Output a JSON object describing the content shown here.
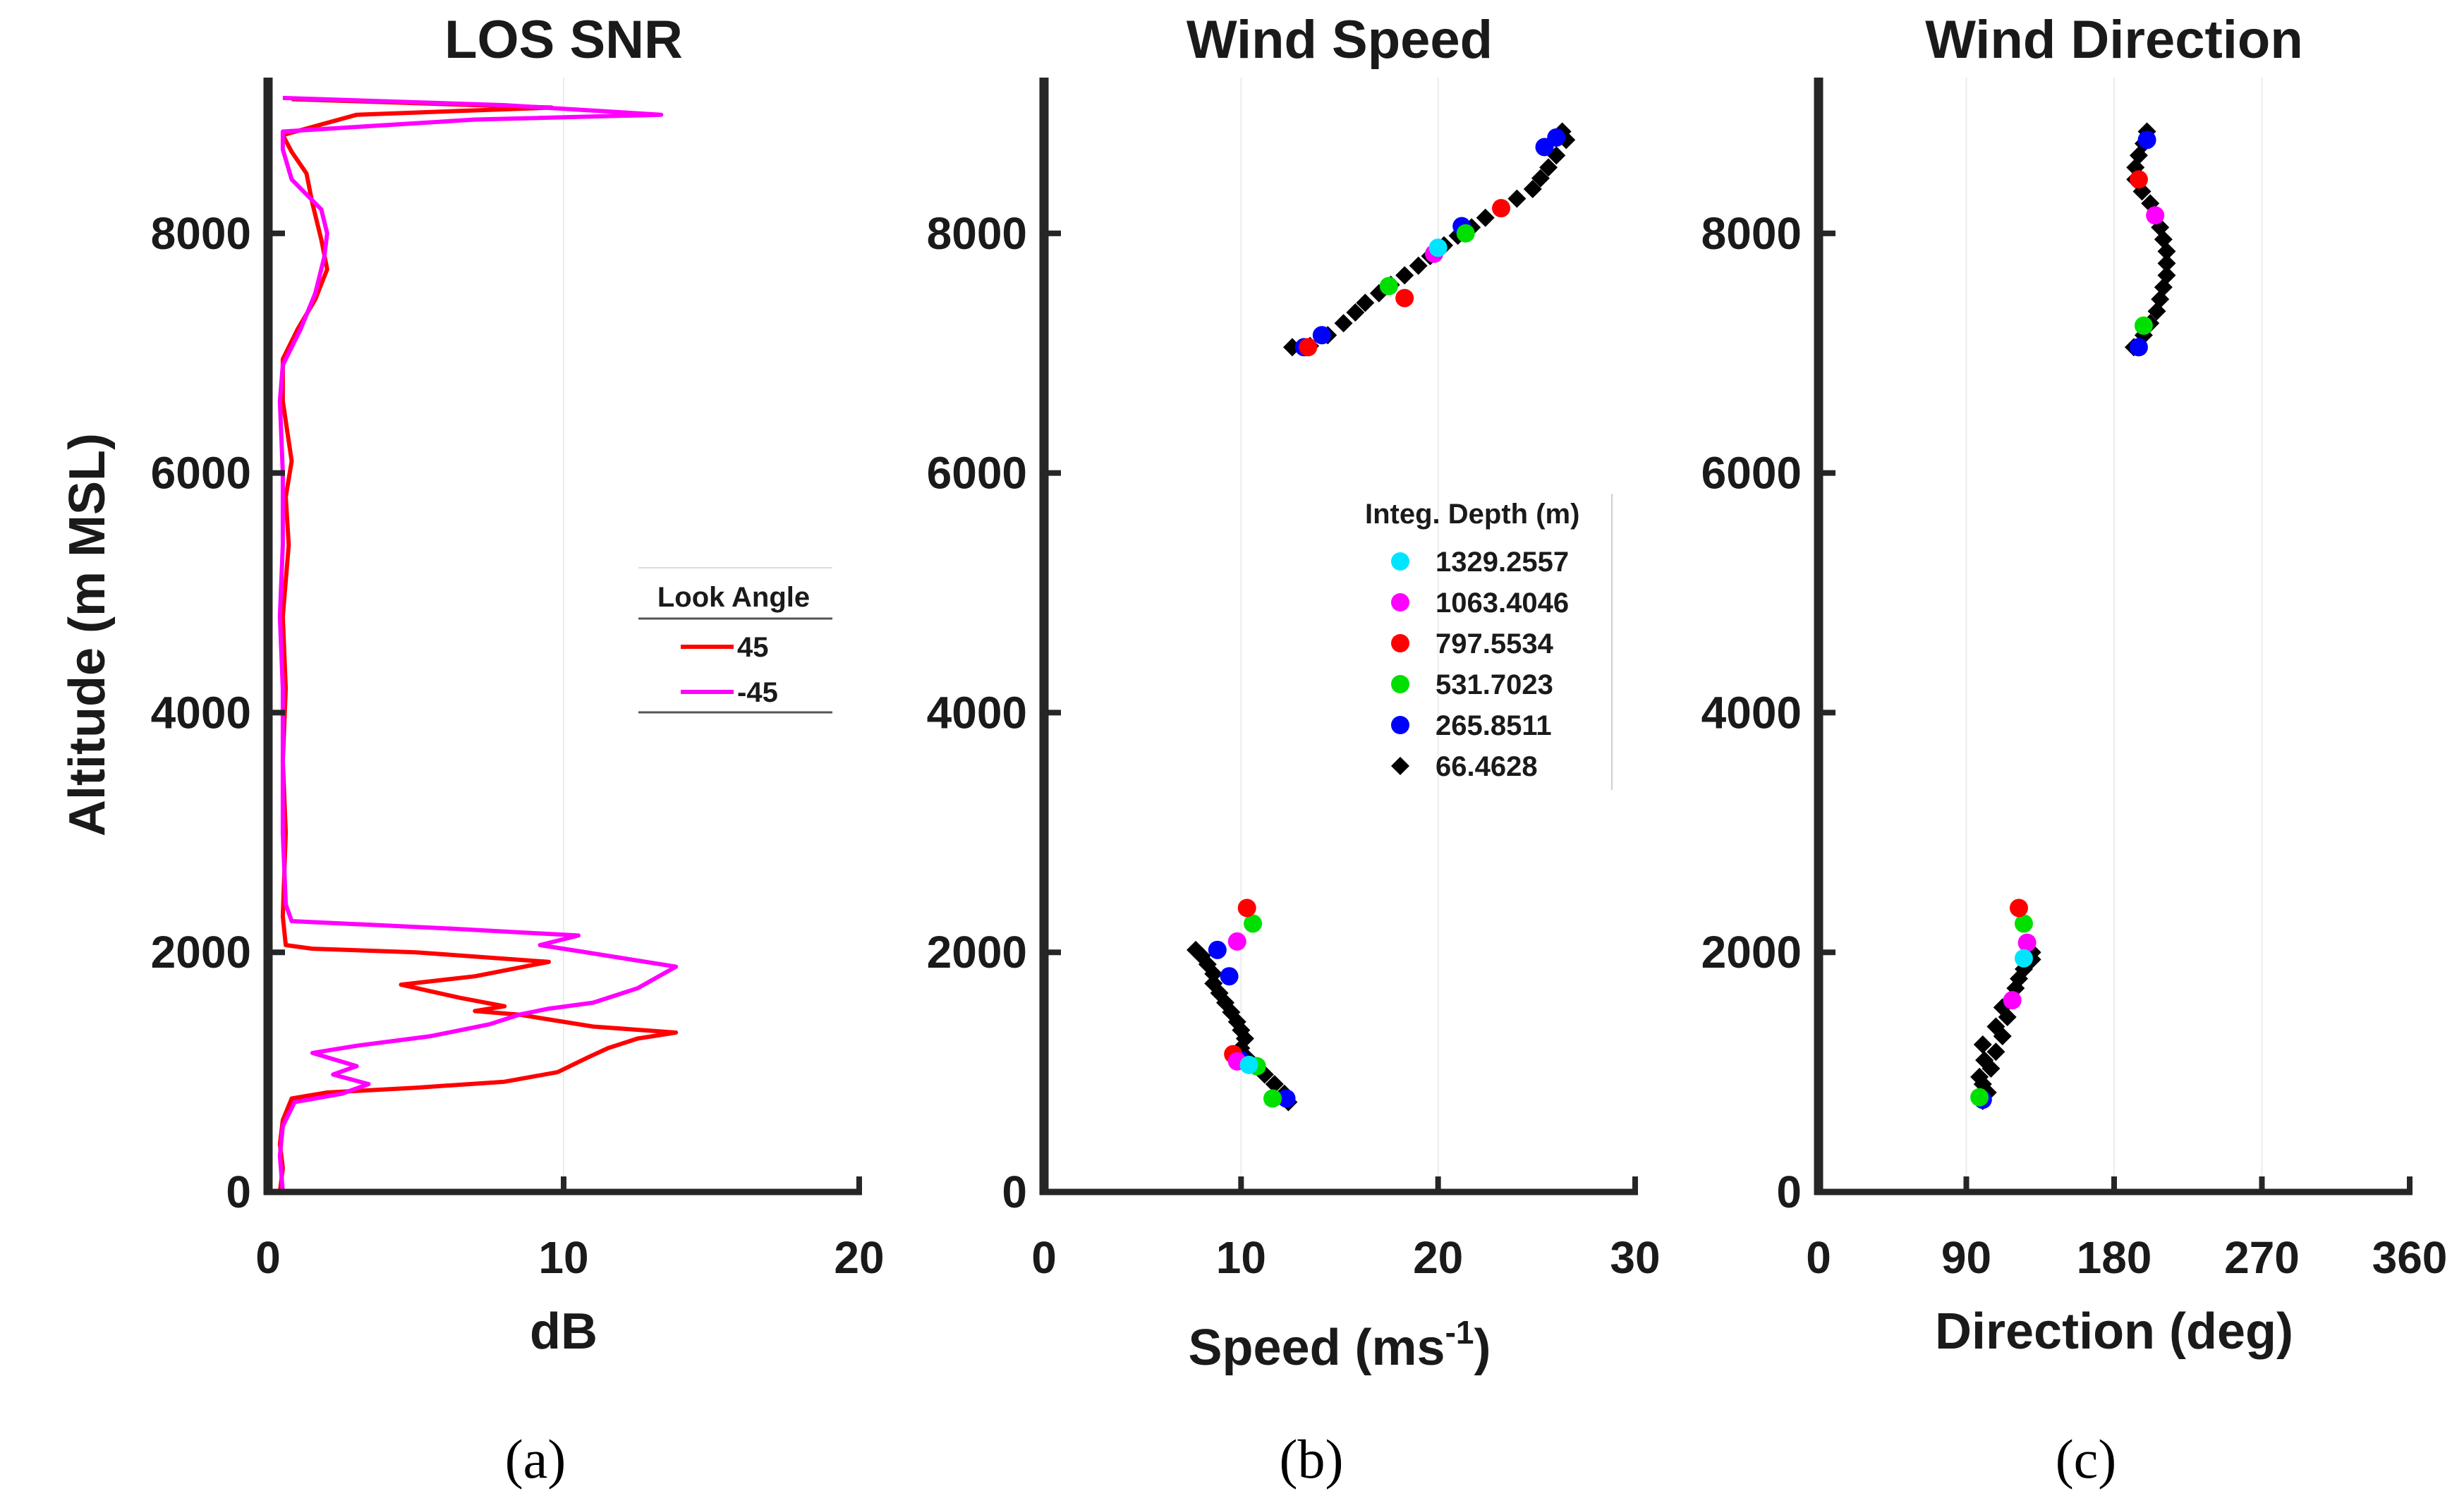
{
  "chart_data": [
    {
      "type": "line",
      "panel": "(a)",
      "title": "LOS SNR",
      "xlabel": "dB",
      "ylabel": "Altitude (m MSL)",
      "xlim": [
        0,
        20
      ],
      "ylim": [
        0,
        9300
      ],
      "xticks": [
        "0",
        "10",
        "20"
      ],
      "yticks": [
        "0",
        "2000",
        "4000",
        "6000",
        "8000"
      ],
      "legend": {
        "title": "Look Angle",
        "entries": [
          "45",
          "-45"
        ],
        "position": "center-right"
      },
      "series": [
        {
          "name": "45",
          "color": "#ff0000",
          "points": [
            [
              0.4,
              0
            ],
            [
              0.5,
              200
            ],
            [
              0.4,
              400
            ],
            [
              0.5,
              600
            ],
            [
              0.8,
              780
            ],
            [
              2,
              830
            ],
            [
              5,
              870
            ],
            [
              8,
              920
            ],
            [
              9.8,
              1000
            ],
            [
              10.8,
              1120
            ],
            [
              11.5,
              1200
            ],
            [
              12.5,
              1280
            ],
            [
              13.8,
              1330
            ],
            [
              11,
              1380
            ],
            [
              8.5,
              1480
            ],
            [
              7,
              1510
            ],
            [
              8,
              1550
            ],
            [
              6.5,
              1620
            ],
            [
              4.5,
              1730
            ],
            [
              7,
              1800
            ],
            [
              9.5,
              1920
            ],
            [
              5,
              2000
            ],
            [
              1.5,
              2030
            ],
            [
              0.6,
              2060
            ],
            [
              0.5,
              2300
            ],
            [
              0.6,
              3000
            ],
            [
              0.5,
              3600
            ],
            [
              0.6,
              4200
            ],
            [
              0.5,
              4800
            ],
            [
              0.7,
              5400
            ],
            [
              0.6,
              5800
            ],
            [
              0.8,
              6100
            ],
            [
              0.5,
              6600
            ],
            [
              0.5,
              6950
            ],
            [
              1,
              7200
            ],
            [
              1.6,
              7450
            ],
            [
              2,
              7700
            ],
            [
              1.8,
              7950
            ],
            [
              1.5,
              8250
            ],
            [
              1.3,
              8500
            ],
            [
              0.8,
              8680
            ],
            [
              0.5,
              8820
            ],
            [
              3,
              8990
            ],
            [
              9.6,
              9050
            ],
            [
              0.8,
              9120
            ]
          ]
        },
        {
          "name": "-45",
          "color": "#ff00ff",
          "points": [
            [
              0.5,
              0
            ],
            [
              0.4,
              300
            ],
            [
              0.5,
              550
            ],
            [
              0.9,
              750
            ],
            [
              2.5,
              820
            ],
            [
              3.4,
              900
            ],
            [
              2.2,
              980
            ],
            [
              3,
              1050
            ],
            [
              1.5,
              1160
            ],
            [
              3,
              1220
            ],
            [
              5.5,
              1300
            ],
            [
              7.5,
              1400
            ],
            [
              8.5,
              1480
            ],
            [
              9.5,
              1530
            ],
            [
              11,
              1580
            ],
            [
              12.5,
              1700
            ],
            [
              13.8,
              1880
            ],
            [
              10.5,
              2010
            ],
            [
              9.2,
              2060
            ],
            [
              10.5,
              2140
            ],
            [
              6,
              2200
            ],
            [
              0.8,
              2260
            ],
            [
              0.6,
              2400
            ],
            [
              0.5,
              3000
            ],
            [
              0.5,
              3600
            ],
            [
              0.5,
              4200
            ],
            [
              0.4,
              4800
            ],
            [
              0.5,
              5400
            ],
            [
              0.5,
              6000
            ],
            [
              0.4,
              6600
            ],
            [
              0.5,
              6900
            ],
            [
              1.1,
              7200
            ],
            [
              1.6,
              7500
            ],
            [
              1.9,
              7800
            ],
            [
              2,
              8000
            ],
            [
              1.8,
              8200
            ],
            [
              0.8,
              8450
            ],
            [
              0.5,
              8700
            ],
            [
              0.5,
              8850
            ],
            [
              7,
              8950
            ],
            [
              13.3,
              8990
            ],
            [
              8,
              9070
            ],
            [
              0.5,
              9130
            ]
          ]
        }
      ]
    },
    {
      "type": "scatter",
      "panel": "(b)",
      "title": "Wind Speed",
      "xlabel": "Speed (ms",
      "xlabel_sup": "-1",
      "xlabel_end": ")",
      "ylabel": "",
      "xlim": [
        0,
        30
      ],
      "ylim": [
        0,
        9300
      ],
      "xticks": [
        "0",
        "10",
        "20",
        "30"
      ],
      "yticks": [
        "0",
        "2000",
        "4000",
        "6000",
        "8000"
      ],
      "legend": {
        "title": "Integ. Depth (m)",
        "entries": [
          {
            "label": "1329.2557",
            "color": "#00e5ff"
          },
          {
            "label": "1063.4046",
            "color": "#ff00ff"
          },
          {
            "label": "797.5534",
            "color": "#ff0000"
          },
          {
            "label": "531.7023",
            "color": "#00e000"
          },
          {
            "label": "265.8511",
            "color": "#0000ff"
          },
          {
            "label": "66.4628",
            "color": "#000000"
          }
        ],
        "position": "center-right"
      },
      "series": [
        {
          "name": "66.4628",
          "color": "#000000",
          "points": [
            [
              12.4,
              750
            ],
            [
              12.2,
              820
            ],
            [
              11.7,
              900
            ],
            [
              11.2,
              980
            ],
            [
              10.8,
              1050
            ],
            [
              10.3,
              1120
            ],
            [
              10.0,
              1200
            ],
            [
              10.2,
              1280
            ],
            [
              10.0,
              1350
            ],
            [
              9.8,
              1420
            ],
            [
              9.5,
              1500
            ],
            [
              9.2,
              1580
            ],
            [
              8.9,
              1660
            ],
            [
              8.6,
              1740
            ],
            [
              8.6,
              1820
            ],
            [
              8.3,
              1900
            ],
            [
              8.0,
              1970
            ],
            [
              7.7,
              2020
            ],
            [
              12.6,
              7050
            ],
            [
              13.5,
              7060
            ],
            [
              14.4,
              7150
            ],
            [
              15.2,
              7250
            ],
            [
              15.8,
              7340
            ],
            [
              16.3,
              7420
            ],
            [
              17.0,
              7500
            ],
            [
              17.6,
              7570
            ],
            [
              18.3,
              7650
            ],
            [
              19.0,
              7730
            ],
            [
              19.6,
              7810
            ],
            [
              20.3,
              7900
            ],
            [
              21.0,
              7980
            ],
            [
              21.7,
              8050
            ],
            [
              22.4,
              8130
            ],
            [
              23.2,
              8210
            ],
            [
              24.0,
              8290
            ],
            [
              24.8,
              8370
            ],
            [
              25.2,
              8460
            ],
            [
              25.6,
              8550
            ],
            [
              26.0,
              8650
            ],
            [
              26.5,
              8780
            ],
            [
              26.3,
              8850
            ]
          ]
        },
        {
          "name": "265.8511",
          "color": "#0000ff",
          "points": [
            [
              12.3,
              780
            ],
            [
              10.0,
              1100
            ],
            [
              9.4,
              1800
            ],
            [
              8.8,
              2020
            ],
            [
              13.2,
              7050
            ],
            [
              14.1,
              7150
            ],
            [
              21.2,
              8060
            ],
            [
              25.4,
              8720
            ],
            [
              26.0,
              8800
            ]
          ]
        },
        {
          "name": "531.7023",
          "color": "#00e000",
          "points": [
            [
              11.6,
              780
            ],
            [
              10.8,
              1050
            ],
            [
              10.6,
              2240
            ],
            [
              17.5,
              7560
            ],
            [
              21.4,
              8000
            ]
          ]
        },
        {
          "name": "797.5534",
          "color": "#ff0000",
          "points": [
            [
              9.6,
              1150
            ],
            [
              10.3,
              2370
            ],
            [
              13.4,
              7050
            ],
            [
              18.3,
              7460
            ],
            [
              23.2,
              8210
            ]
          ]
        },
        {
          "name": "1063.4046",
          "color": "#ff00ff",
          "points": [
            [
              9.8,
              1090
            ],
            [
              9.8,
              2090
            ],
            [
              19.8,
              7830
            ]
          ]
        },
        {
          "name": "1329.2557",
          "color": "#00e5ff",
          "points": [
            [
              10.4,
              1060
            ],
            [
              20.0,
              7880
            ]
          ]
        }
      ]
    },
    {
      "type": "scatter",
      "panel": "(c)",
      "title": "Wind Direction",
      "xlabel": "Direction (deg)",
      "ylabel": "",
      "xlim": [
        0,
        360
      ],
      "ylim": [
        0,
        9300
      ],
      "xticks": [
        "0",
        "90",
        "180",
        "270",
        "360"
      ],
      "yticks": [
        "0",
        "2000",
        "4000",
        "6000",
        "8000"
      ],
      "series": [
        {
          "name": "66.4628",
          "color": "#000000",
          "points": [
            [
              100,
              760
            ],
            [
              103,
              830
            ],
            [
              100,
              900
            ],
            [
              98,
              960
            ],
            [
              105,
              1030
            ],
            [
              101,
              1100
            ],
            [
              108,
              1170
            ],
            [
              100,
              1230
            ],
            [
              112,
              1300
            ],
            [
              108,
              1380
            ],
            [
              115,
              1460
            ],
            [
              112,
              1540
            ],
            [
              118,
              1620
            ],
            [
              120,
              1700
            ],
            [
              122,
              1780
            ],
            [
              125,
              1860
            ],
            [
              130,
              1940
            ],
            [
              130,
              2000
            ],
            [
              192,
              7050
            ],
            [
              198,
              7150
            ],
            [
              202,
              7250
            ],
            [
              206,
              7350
            ],
            [
              208,
              7450
            ],
            [
              210,
              7550
            ],
            [
              212,
              7650
            ],
            [
              212,
              7750
            ],
            [
              212,
              7850
            ],
            [
              210,
              7950
            ],
            [
              208,
              8050
            ],
            [
              205,
              8150
            ],
            [
              202,
              8250
            ],
            [
              197,
              8350
            ],
            [
              193,
              8450
            ],
            [
              193,
              8550
            ],
            [
              195,
              8650
            ],
            [
              198,
              8750
            ],
            [
              200,
              8850
            ]
          ]
        },
        {
          "name": "265.8511",
          "color": "#0000ff",
          "points": [
            [
              100,
              770
            ],
            [
              195,
              7050
            ],
            [
              200,
              8780
            ]
          ]
        },
        {
          "name": "531.7023",
          "color": "#00e000",
          "points": [
            [
              98,
              790
            ],
            [
              125,
              2240
            ],
            [
              198,
              7230
            ]
          ]
        },
        {
          "name": "797.5534",
          "color": "#ff0000",
          "points": [
            [
              122,
              2370
            ],
            [
              195,
              8450
            ]
          ]
        },
        {
          "name": "1063.4046",
          "color": "#ff00ff",
          "points": [
            [
              118,
              1600
            ],
            [
              127,
              2080
            ],
            [
              205,
              8150
            ]
          ]
        },
        {
          "name": "1329.2557",
          "color": "#00e5ff",
          "points": [
            [
              125,
              1950
            ]
          ]
        }
      ]
    }
  ]
}
